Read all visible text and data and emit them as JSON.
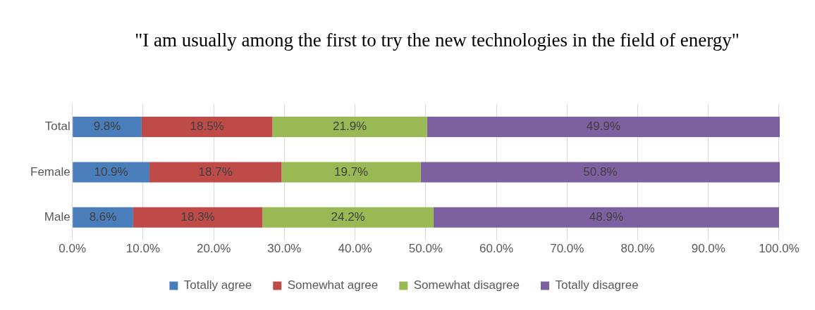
{
  "chart_data": {
    "type": "bar",
    "orientation": "horizontal",
    "stacked": true,
    "title": "\"I am usually among the first to try the new technologies in the field of energy\"",
    "categories": [
      "Total",
      "Female",
      "Male"
    ],
    "series": [
      {
        "name": "Totally agree",
        "color": "#4a7ebb",
        "values": [
          9.8,
          10.9,
          8.6
        ]
      },
      {
        "name": "Somewhat agree",
        "color": "#be4b48",
        "values": [
          18.5,
          18.7,
          18.3
        ]
      },
      {
        "name": "Somewhat disagree",
        "color": "#98b954",
        "values": [
          21.9,
          19.7,
          24.2
        ]
      },
      {
        "name": "Totally disagree",
        "color": "#7d60a0",
        "values": [
          49.9,
          50.8,
          48.9
        ]
      }
    ],
    "xlim": [
      0,
      100.1
    ],
    "xticks": [
      {
        "value": 0,
        "label": "0.0%"
      },
      {
        "value": 10,
        "label": "10.0%"
      },
      {
        "value": 20,
        "label": "20.0%"
      },
      {
        "value": 30,
        "label": "30.0%"
      },
      {
        "value": 40,
        "label": "40.0%"
      },
      {
        "value": 50,
        "label": "50.0%"
      },
      {
        "value": 60,
        "label": "60.0%"
      },
      {
        "value": 70,
        "label": "70.0%"
      },
      {
        "value": 80,
        "label": "80.0%"
      },
      {
        "value": 90,
        "label": "90.0%"
      },
      {
        "value": 100,
        "label": "100.0%"
      }
    ],
    "value_labels": [
      [
        "9.8%",
        "10.9%",
        "8.6%"
      ],
      [
        "18.5%",
        "18.7%",
        "18.3%"
      ],
      [
        "21.9%",
        "19.7%",
        "24.2%"
      ],
      [
        "49.9%",
        "50.8%",
        "48.9%"
      ]
    ],
    "grid": "x",
    "legend": "bottom"
  }
}
